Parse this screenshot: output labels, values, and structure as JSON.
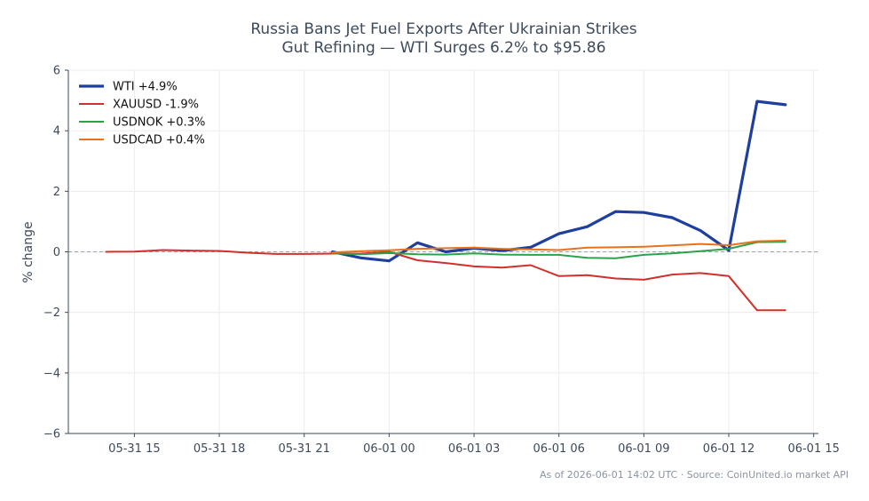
{
  "chart_data": {
    "type": "line",
    "title_lines": [
      "Russia Bans Jet Fuel Exports After Ukrainian Strikes",
      "Gut Refining — WTI Surges 6.2% to $95.86"
    ],
    "xlabel": "",
    "ylabel": "% change",
    "ylim": [
      -6,
      6
    ],
    "yticks": [
      -6,
      -4,
      -2,
      0,
      2,
      4,
      6
    ],
    "ytick_labels": [
      "−6",
      "−4",
      "−2",
      "0",
      "2",
      "4",
      "6"
    ],
    "xlim": [
      "05-31 12:40",
      "06-01 15:10"
    ],
    "xticks": [
      "05-31 15",
      "05-31 18",
      "05-31 21",
      "06-01 00",
      "06-01 03",
      "06-01 06",
      "06-01 09",
      "06-01 12",
      "06-01 15"
    ],
    "grid": true,
    "legend_position": "top-left",
    "baseline": 0,
    "series": [
      {
        "name": "WTI +4.9%",
        "color": "#1f3f9e",
        "x": [
          "05-31 22:00",
          "05-31 23:00",
          "06-01 00:00",
          "06-01 01:00",
          "06-01 02:00",
          "06-01 03:00",
          "06-01 04:00",
          "06-01 05:00",
          "06-01 06:00",
          "06-01 07:00",
          "06-01 08:00",
          "06-01 09:00",
          "06-01 10:00",
          "06-01 11:00",
          "06-01 12:00",
          "06-01 13:00",
          "06-01 14:00"
        ],
        "values": [
          0.0,
          -0.2,
          -0.3,
          0.3,
          0.0,
          0.12,
          0.04,
          0.15,
          0.6,
          0.83,
          1.33,
          1.3,
          1.13,
          0.7,
          0.05,
          4.97,
          4.86
        ]
      },
      {
        "name": "XAUUSD -1.9%",
        "color": "#d1302b",
        "x": [
          "05-31 14:00",
          "05-31 15:00",
          "05-31 16:00",
          "05-31 17:00",
          "05-31 18:00",
          "05-31 19:00",
          "05-31 20:00",
          "05-31 21:00",
          "05-31 22:00",
          "05-31 23:00",
          "06-01 00:00",
          "06-01 01:00",
          "06-01 02:00",
          "06-01 03:00",
          "06-01 04:00",
          "06-01 05:00",
          "06-01 06:00",
          "06-01 07:00",
          "06-01 08:00",
          "06-01 09:00",
          "06-01 10:00",
          "06-01 11:00",
          "06-01 12:00",
          "06-01 13:00",
          "06-01 14:00"
        ],
        "values": [
          0.0,
          0.01,
          0.06,
          0.04,
          0.03,
          -0.03,
          -0.07,
          -0.07,
          -0.06,
          -0.06,
          0.0,
          -0.28,
          -0.37,
          -0.48,
          -0.52,
          -0.44,
          -0.8,
          -0.77,
          -0.88,
          -0.92,
          -0.75,
          -0.7,
          -0.8,
          -1.93,
          -1.93
        ]
      },
      {
        "name": "USDNOK +0.3%",
        "color": "#2ca34a",
        "x": [
          "05-31 22:00",
          "05-31 23:00",
          "06-01 00:00",
          "06-01 01:00",
          "06-01 02:00",
          "06-01 03:00",
          "06-01 04:00",
          "06-01 05:00",
          "06-01 06:00",
          "06-01 07:00",
          "06-01 08:00",
          "06-01 09:00",
          "06-01 10:00",
          "06-01 11:00",
          "06-01 12:00",
          "06-01 13:00",
          "06-01 14:00"
        ],
        "values": [
          -0.05,
          -0.08,
          -0.04,
          -0.08,
          -0.09,
          -0.05,
          -0.09,
          -0.1,
          -0.1,
          -0.2,
          -0.21,
          -0.1,
          -0.05,
          0.02,
          0.1,
          0.32,
          0.33
        ]
      },
      {
        "name": "USDCAD +0.4%",
        "color": "#e8721c",
        "x": [
          "05-31 22:00",
          "05-31 23:00",
          "06-01 00:00",
          "06-01 01:00",
          "06-01 02:00",
          "06-01 03:00",
          "06-01 04:00",
          "06-01 05:00",
          "06-01 06:00",
          "06-01 07:00",
          "06-01 08:00",
          "06-01 09:00",
          "06-01 10:00",
          "06-01 11:00",
          "06-01 12:00",
          "06-01 13:00",
          "06-01 14:00"
        ],
        "values": [
          -0.02,
          0.02,
          0.05,
          0.1,
          0.12,
          0.14,
          0.1,
          0.08,
          0.06,
          0.14,
          0.15,
          0.17,
          0.21,
          0.26,
          0.22,
          0.35,
          0.37
        ]
      }
    ],
    "footer": "As of 2026-06-01 14:02 UTC · Source: CoinUnited.io market API"
  }
}
